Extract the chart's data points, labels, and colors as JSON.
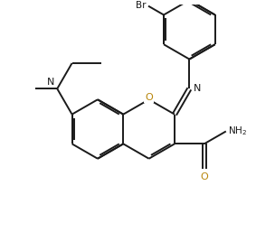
{
  "background_color": "#ffffff",
  "bond_color": "#1a1a1a",
  "atom_colors": {
    "O": "#b8860b",
    "N": "#1a1a1a",
    "Br": "#1a1a1a",
    "NH2": "#1a1818"
  },
  "figsize": [
    3.04,
    2.57
  ],
  "dpi": 100,
  "lw": 1.4,
  "r": 0.52,
  "bl": 0.52
}
